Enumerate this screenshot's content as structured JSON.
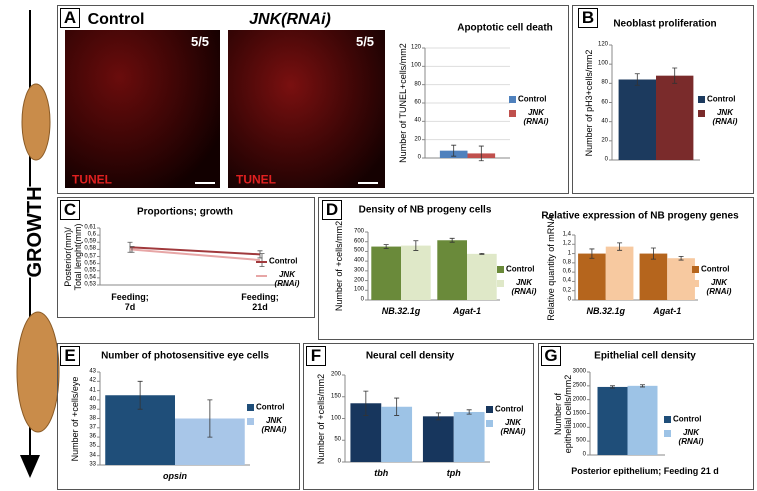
{
  "figure": {
    "panels": [
      "A",
      "B",
      "C",
      "D",
      "E",
      "F",
      "G"
    ],
    "growth": "GROWTH",
    "images": [
      {
        "title": "Control",
        "score": "5/5",
        "stain": "TUNEL"
      },
      {
        "title": "JNK(RNAi)",
        "score": "5/5",
        "stain": "TUNEL"
      }
    ]
  },
  "chart_data": [
    {
      "type": "bar",
      "title": "Apoptotic cell death",
      "y_label": "Number of TUNEL+cells/mm2",
      "categories": [
        null
      ],
      "series": [
        {
          "name": "Control",
          "color": "#4f81bd",
          "values": [
            8
          ],
          "errors": [
            6
          ]
        },
        {
          "name": "JNK (RNAi)",
          "color": "#c0504d",
          "values": [
            5
          ],
          "errors": [
            8
          ]
        }
      ],
      "ylim": [
        0,
        120
      ],
      "yticks": [
        0,
        20,
        40,
        60,
        80,
        100,
        120
      ],
      "grid": true,
      "legend": "right"
    },
    {
      "type": "bar",
      "title": "Neoblast proliferation",
      "y_label": "Number of pH3+cells/mm2",
      "categories": [
        null
      ],
      "series": [
        {
          "name": "Control",
          "color": "#1c3a5e",
          "values": [
            84
          ],
          "errors": [
            6
          ]
        },
        {
          "name": "JNK (RNAi)",
          "color": "#7a2b2b",
          "values": [
            88
          ],
          "errors": [
            8
          ]
        }
      ],
      "ylim": [
        0,
        120
      ],
      "yticks": [
        0,
        20,
        40,
        60,
        80,
        100,
        120
      ],
      "legend": "right"
    },
    {
      "type": "line",
      "title": "Proportions; growth",
      "y_label": "Posterior(mm)/ Total lenght(mm)",
      "categories": [
        "Feeding; 7d",
        "Feeding; 21d"
      ],
      "series": [
        {
          "name": "Control",
          "color": "#a0393c",
          "values": [
            0.583,
            0.573
          ],
          "errors": [
            0.007,
            0.005
          ]
        },
        {
          "name": "JNK (RNAi)",
          "color": "#e7a6a6",
          "values": [
            0.58,
            0.565
          ],
          "errors": [
            0.004,
            0.009
          ]
        }
      ],
      "ylim": [
        0.53,
        0.61
      ],
      "yticks": [
        {
          "value": 0.53,
          "label": "0,53"
        },
        {
          "value": 0.54,
          "label": "0,54"
        },
        {
          "value": 0.55,
          "label": "0,55"
        },
        {
          "value": 0.56,
          "label": "0,56"
        },
        {
          "value": 0.57,
          "label": "0,57"
        },
        {
          "value": 0.58,
          "label": "0,58"
        },
        {
          "value": 0.59,
          "label": "0,59"
        },
        {
          "value": 0.6,
          "label": "0,6"
        },
        {
          "value": 0.61,
          "label": "0,61"
        }
      ],
      "legend": "right"
    },
    {
      "type": "bar",
      "title": "Density of NB progeny cells",
      "y_label": "Number of +cells/mm2",
      "categories": [
        "NB.32.1g",
        "Agat-1"
      ],
      "series": [
        {
          "name": "Control",
          "color": "#6a8a3a",
          "values": [
            550,
            615
          ],
          "errors": [
            20,
            20
          ]
        },
        {
          "name": "JNK (RNAi)",
          "color": "#dfe8c8",
          "values": [
            560,
            475
          ],
          "errors": [
            50,
            5
          ]
        }
      ],
      "ylim": [
        0,
        700
      ],
      "yticks": [
        0,
        100,
        200,
        300,
        400,
        500,
        600,
        700
      ],
      "legend": "right"
    },
    {
      "type": "bar",
      "title": "Relative expression of NB progeny genes",
      "y_label": "Relative quantity of mRNA",
      "categories": [
        "NB.32.1g",
        "Agat-1"
      ],
      "series": [
        {
          "name": "Control",
          "color": "#b5651d",
          "values": [
            1.0,
            1.0
          ],
          "errors": [
            0.1,
            0.12
          ]
        },
        {
          "name": "JNK (RNAi)",
          "color": "#f7c9a0",
          "values": [
            1.15,
            0.9
          ],
          "errors": [
            0.08,
            0.04
          ]
        }
      ],
      "ylim": [
        0,
        1.4
      ],
      "yticks": [
        0,
        {
          "value": 0.2,
          "label": "0,2"
        },
        {
          "value": 0.4,
          "label": "0,4"
        },
        {
          "value": 0.6,
          "label": "0,6"
        },
        {
          "value": 0.8,
          "label": "0,8"
        },
        1,
        {
          "value": 1.2,
          "label": "1,2"
        },
        {
          "value": 1.4,
          "label": "1,4"
        }
      ],
      "legend": "right"
    },
    {
      "type": "bar",
      "title": "Number of photosensitive eye cells",
      "y_label": "Number of +cells/eye",
      "categories": [
        "opsin"
      ],
      "series": [
        {
          "name": "Control",
          "color": "#1f4e79",
          "values": [
            40.5
          ],
          "errors": [
            1.5
          ]
        },
        {
          "name": "JNK (RNAi)",
          "color": "#a8c6e8",
          "values": [
            38
          ],
          "errors": [
            2
          ]
        }
      ],
      "ylim": [
        33,
        43
      ],
      "yticks": [
        33,
        34,
        35,
        36,
        37,
        38,
        39,
        40,
        41,
        42,
        43
      ],
      "legend": "right"
    },
    {
      "type": "bar",
      "title": "Neural cell density",
      "y_label": "Number of +cells/mm2",
      "categories": [
        "tbh",
        "tph"
      ],
      "series": [
        {
          "name": "Control",
          "color": "#17365d",
          "values": [
            135,
            105
          ],
          "errors": [
            28,
            8
          ]
        },
        {
          "name": "JNK (RNAi)",
          "color": "#9dc3e6",
          "values": [
            127,
            115
          ],
          "errors": [
            20,
            5
          ]
        }
      ],
      "ylim": [
        0,
        200
      ],
      "yticks": [
        0,
        50,
        100,
        150,
        200
      ],
      "legend": "right"
    },
    {
      "type": "bar",
      "title": "Epithelial cell density",
      "y_label": "Number of epithelial cells/mm2",
      "x_label": "Posterior epithelium; Feeding 21 d",
      "categories": [
        null
      ],
      "series": [
        {
          "name": "Control",
          "color": "#1f4e79",
          "values": [
            2460
          ],
          "errors": [
            40
          ]
        },
        {
          "name": "JNK (RNAi)",
          "color": "#9dc3e6",
          "values": [
            2500
          ],
          "errors": [
            40
          ]
        }
      ],
      "ylim": [
        0,
        3000
      ],
      "yticks": [
        0,
        500,
        1000,
        1500,
        2000,
        2500,
        3000
      ],
      "legend": "right"
    }
  ]
}
